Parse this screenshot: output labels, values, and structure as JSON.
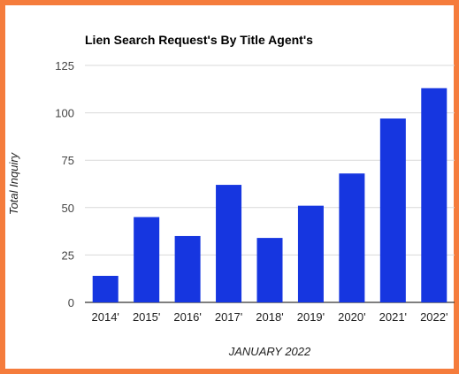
{
  "chart_data": {
    "type": "bar",
    "title": "Lien Search Request's By Title Agent's",
    "xlabel": "JANUARY 2022",
    "ylabel": "Total Inquiry",
    "categories": [
      "2014'",
      "2015'",
      "2016'",
      "2017'",
      "2018'",
      "2019'",
      "2020'",
      "2021'",
      "2022'"
    ],
    "values": [
      14,
      45,
      35,
      62,
      34,
      51,
      68,
      97,
      113
    ],
    "ylim": [
      0,
      125
    ],
    "yticks": [
      0,
      25,
      50,
      75,
      100,
      125
    ],
    "grid": true,
    "legend": "none",
    "bar_color": "#1636e0",
    "grid_color": "#d9d9d9",
    "frame_color": "#f57c3c"
  }
}
